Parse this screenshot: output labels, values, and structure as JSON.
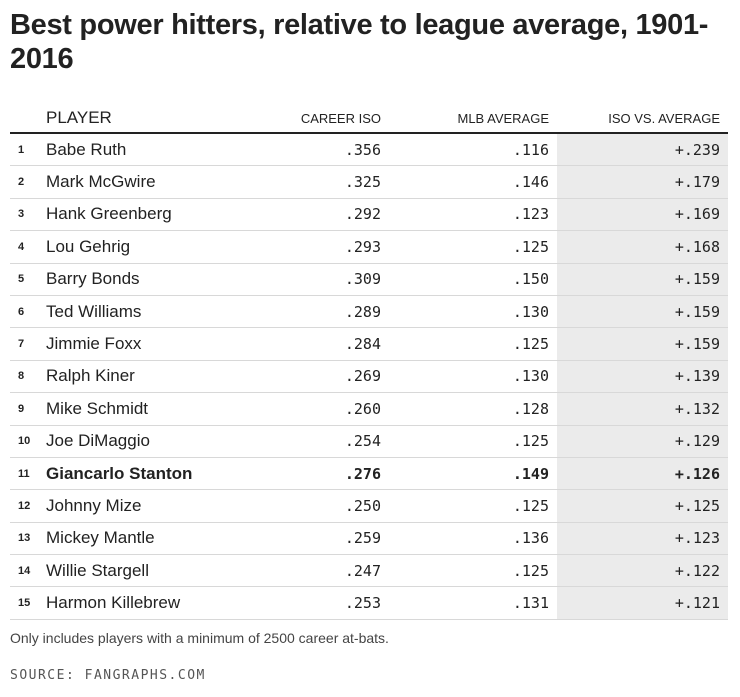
{
  "title": "Best power hitters, relative to league average, 1901-2016",
  "chart_data": {
    "type": "table",
    "columns": [
      "",
      "PLAYER",
      "CAREER ISO",
      "MLB AVERAGE",
      "ISO VS. AVERAGE"
    ],
    "rows": [
      {
        "rank": "1",
        "player": "Babe Ruth",
        "career_iso": ".356",
        "mlb_average": ".116",
        "iso_vs_average": "+.239",
        "highlight": false
      },
      {
        "rank": "2",
        "player": "Mark McGwire",
        "career_iso": ".325",
        "mlb_average": ".146",
        "iso_vs_average": "+.179",
        "highlight": false
      },
      {
        "rank": "3",
        "player": "Hank Greenberg",
        "career_iso": ".292",
        "mlb_average": ".123",
        "iso_vs_average": "+.169",
        "highlight": false
      },
      {
        "rank": "4",
        "player": "Lou Gehrig",
        "career_iso": ".293",
        "mlb_average": ".125",
        "iso_vs_average": "+.168",
        "highlight": false
      },
      {
        "rank": "5",
        "player": "Barry Bonds",
        "career_iso": ".309",
        "mlb_average": ".150",
        "iso_vs_average": "+.159",
        "highlight": false
      },
      {
        "rank": "6",
        "player": "Ted Williams",
        "career_iso": ".289",
        "mlb_average": ".130",
        "iso_vs_average": "+.159",
        "highlight": false
      },
      {
        "rank": "7",
        "player": "Jimmie Foxx",
        "career_iso": ".284",
        "mlb_average": ".125",
        "iso_vs_average": "+.159",
        "highlight": false
      },
      {
        "rank": "8",
        "player": "Ralph Kiner",
        "career_iso": ".269",
        "mlb_average": ".130",
        "iso_vs_average": "+.139",
        "highlight": false
      },
      {
        "rank": "9",
        "player": "Mike Schmidt",
        "career_iso": ".260",
        "mlb_average": ".128",
        "iso_vs_average": "+.132",
        "highlight": false
      },
      {
        "rank": "10",
        "player": "Joe DiMaggio",
        "career_iso": ".254",
        "mlb_average": ".125",
        "iso_vs_average": "+.129",
        "highlight": false
      },
      {
        "rank": "11",
        "player": "Giancarlo Stanton",
        "career_iso": ".276",
        "mlb_average": ".149",
        "iso_vs_average": "+.126",
        "highlight": true
      },
      {
        "rank": "12",
        "player": "Johnny Mize",
        "career_iso": ".250",
        "mlb_average": ".125",
        "iso_vs_average": "+.125",
        "highlight": false
      },
      {
        "rank": "13",
        "player": "Mickey Mantle",
        "career_iso": ".259",
        "mlb_average": ".136",
        "iso_vs_average": "+.123",
        "highlight": false
      },
      {
        "rank": "14",
        "player": "Willie Stargell",
        "career_iso": ".247",
        "mlb_average": ".125",
        "iso_vs_average": "+.122",
        "highlight": false
      },
      {
        "rank": "15",
        "player": "Harmon Killebrew",
        "career_iso": ".253",
        "mlb_average": ".131",
        "iso_vs_average": "+.121",
        "highlight": false
      }
    ],
    "highlight_color": "#ebebeb"
  },
  "note": "Only includes players with a minimum of 2500 career at-bats.",
  "source": "SOURCE: FANGRAPHS.COM"
}
